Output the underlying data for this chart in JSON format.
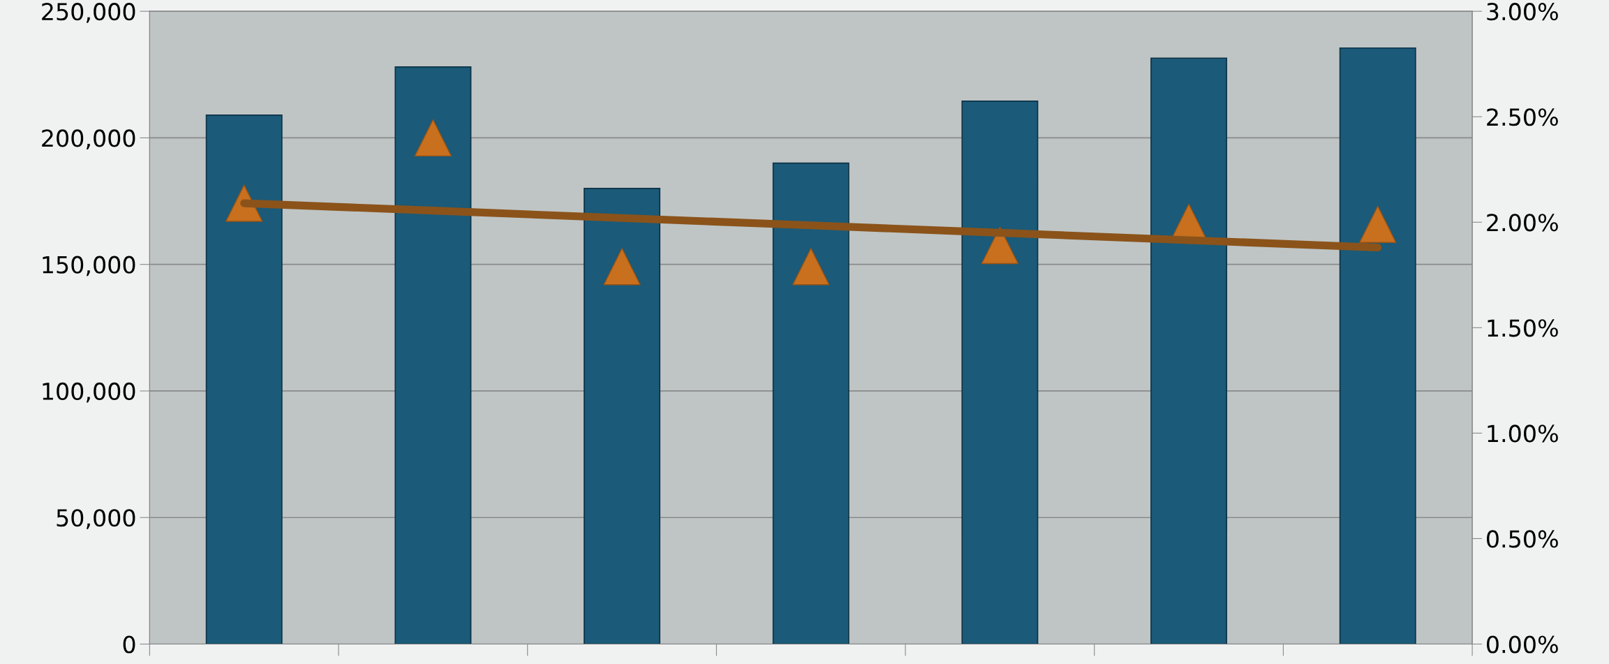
{
  "chart_data": {
    "type": "bar",
    "categories": [
      null,
      null,
      null,
      null,
      null,
      null,
      null
    ],
    "series": [
      {
        "color": "#1b5a78",
        "values": [
          209000,
          228000,
          180000,
          190000,
          214500,
          231500,
          235500
        ]
      },
      {
        "type": "scatter",
        "axis": "y2",
        "marker": "triangle",
        "color": "#c8701e",
        "values": [
          2.09,
          2.4,
          1.79,
          1.79,
          1.89,
          2.0,
          1.99
        ]
      },
      {
        "type": "line",
        "axis": "y2",
        "marker": "none",
        "color": "#8b531a",
        "values": [
          2.09,
          2.055,
          2.02,
          1.985,
          1.95,
          1.915,
          1.88
        ]
      }
    ],
    "ylim": [
      0,
      250000
    ],
    "yticks": [
      {
        "value": 0,
        "label": "0"
      },
      {
        "value": 50000,
        "label": "50,000"
      },
      {
        "value": 100000,
        "label": "100,000"
      },
      {
        "value": 150000,
        "label": "150,000"
      },
      {
        "value": 200000,
        "label": "200,000"
      },
      {
        "value": 250000,
        "label": "250,000"
      }
    ],
    "y2lim": [
      0,
      3
    ],
    "y2ticks": [
      {
        "value": 0,
        "label": "0.00%"
      },
      {
        "value": 0.5,
        "label": "0.50%"
      },
      {
        "value": 1,
        "label": "1.00%"
      },
      {
        "value": 1.5,
        "label": "1.50%"
      },
      {
        "value": 2,
        "label": "2.00%"
      },
      {
        "value": 2.5,
        "label": "2.50%"
      },
      {
        "value": 3,
        "label": "3.00%"
      }
    ],
    "grid": "y",
    "legend": false
  }
}
